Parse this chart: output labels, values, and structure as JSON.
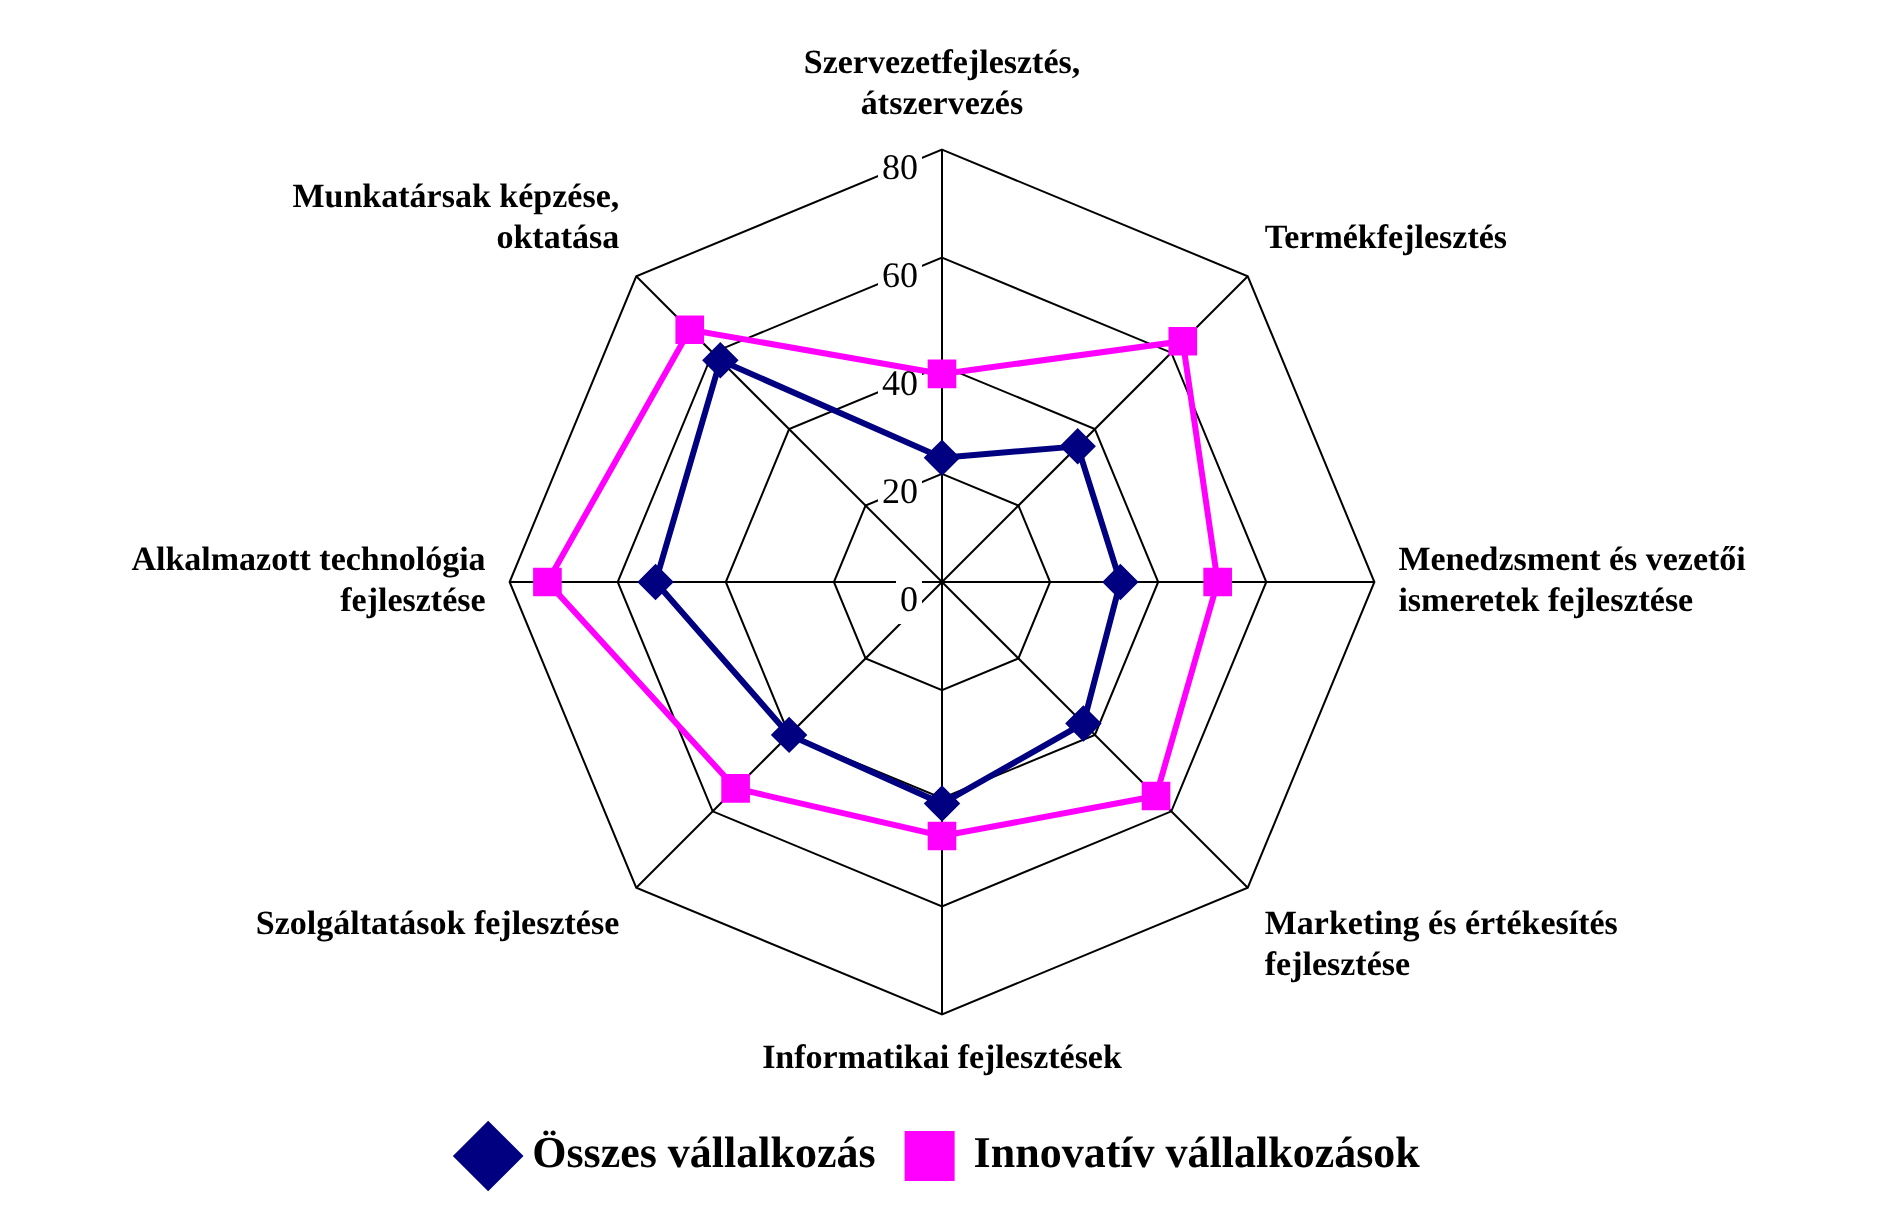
{
  "chart_data": {
    "type": "radar",
    "categories": [
      "Szervezetfejlesztés, átszervezés",
      "Termékfejlesztés",
      "Menedzsment és vezetői ismeretek fejlesztése",
      "Marketing és értékesítés fejlesztése",
      "Informatikai fejlesztések",
      "Szolgáltatások fejlesztése",
      "Alkalmazott technológia fejlesztése",
      "Munkatársak képzése, oktatása"
    ],
    "series": [
      {
        "name": "Összes vállalkozás",
        "color": "#000080",
        "marker": "diamond",
        "values": [
          23,
          35.5,
          33,
          37,
          41,
          40,
          53,
          58
        ]
      },
      {
        "name": "Innovatív vállalkozások",
        "color": "#ff00ff",
        "marker": "square",
        "values": [
          38.5,
          63,
          51,
          56,
          47,
          54,
          73,
          66
        ]
      }
    ],
    "ylim": [
      0,
      80
    ],
    "yticks": [
      0,
      20,
      40,
      60,
      80
    ],
    "grid": true,
    "legend": "bottom"
  }
}
